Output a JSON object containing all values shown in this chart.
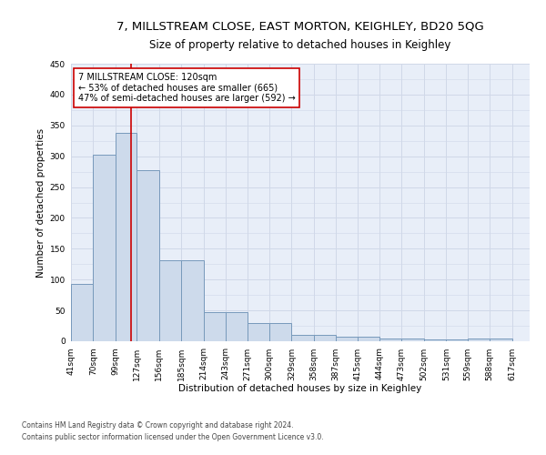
{
  "title": "7, MILLSTREAM CLOSE, EAST MORTON, KEIGHLEY, BD20 5QG",
  "subtitle": "Size of property relative to detached houses in Keighley",
  "xlabel": "Distribution of detached houses by size in Keighley",
  "ylabel": "Number of detached properties",
  "bar_left_edges": [
    41,
    70,
    99,
    127,
    156,
    185,
    214,
    243,
    271,
    300,
    329,
    358,
    387,
    415,
    444,
    473,
    502,
    531,
    559,
    588
  ],
  "bar_widths": [
    29,
    29,
    28,
    29,
    29,
    29,
    29,
    28,
    29,
    29,
    29,
    29,
    28,
    29,
    29,
    29,
    29,
    28,
    29,
    29
  ],
  "bar_heights": [
    93,
    302,
    338,
    278,
    131,
    131,
    47,
    47,
    30,
    30,
    10,
    10,
    8,
    8,
    5,
    5,
    3,
    3,
    5,
    5
  ],
  "bar_color": "#cddaeb",
  "bar_edge_color": "#7799bb",
  "tick_labels": [
    "41sqm",
    "70sqm",
    "99sqm",
    "127sqm",
    "156sqm",
    "185sqm",
    "214sqm",
    "243sqm",
    "271sqm",
    "300sqm",
    "329sqm",
    "358sqm",
    "387sqm",
    "415sqm",
    "444sqm",
    "473sqm",
    "502sqm",
    "531sqm",
    "559sqm",
    "588sqm",
    "617sqm"
  ],
  "tick_positions": [
    41,
    70,
    99,
    127,
    156,
    185,
    214,
    243,
    271,
    300,
    329,
    358,
    387,
    415,
    444,
    473,
    502,
    531,
    559,
    588,
    617
  ],
  "vline_x": 120,
  "vline_color": "#cc0000",
  "annotation_text": "7 MILLSTREAM CLOSE: 120sqm\n← 53% of detached houses are smaller (665)\n47% of semi-detached houses are larger (592) →",
  "annotation_box_color": "#cc0000",
  "ylim": [
    0,
    450
  ],
  "xlim": [
    41,
    640
  ],
  "grid_color": "#d0d8e8",
  "bg_color": "#e8eef8",
  "background_color": "#ffffff",
  "footer_line1": "Contains HM Land Registry data © Crown copyright and database right 2024.",
  "footer_line2": "Contains public sector information licensed under the Open Government Licence v3.0.",
  "title_fontsize": 9.5,
  "subtitle_fontsize": 8.5,
  "axis_label_fontsize": 7.5,
  "tick_fontsize": 6.5,
  "annotation_fontsize": 7.0,
  "footer_fontsize": 5.5
}
